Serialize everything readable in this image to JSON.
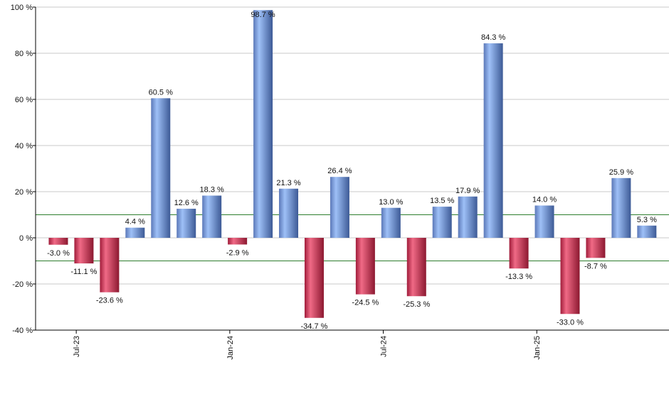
{
  "chart_data": {
    "type": "bar",
    "title": "",
    "xlabel": "",
    "ylabel": "",
    "ylim": [
      -40,
      100
    ],
    "yticks": [
      -40,
      -20,
      0,
      20,
      40,
      60,
      80,
      100
    ],
    "ytick_labels": [
      "-40 %",
      "-20 %",
      "0 %",
      "20 %",
      "40 %",
      "60 %",
      "80 %",
      "100 %"
    ],
    "grid": true,
    "reference_lines": [
      10,
      -10
    ],
    "colors": {
      "positive": "#7fa6e8",
      "negative": "#d9324f",
      "reference_line": "#2e7d2e",
      "gridline": "#c8c8c8"
    },
    "x_tick_labels": [
      {
        "label": "Jul-23",
        "index": 1.2
      },
      {
        "label": "Jan-24",
        "index": 7.2
      },
      {
        "label": "Jul-24",
        "index": 13.2
      },
      {
        "label": "Jan-25",
        "index": 19.2
      }
    ],
    "values": [
      -3.0,
      -11.1,
      -23.6,
      4.4,
      60.5,
      12.6,
      18.3,
      -2.9,
      98.7,
      21.3,
      -34.7,
      26.4,
      -24.5,
      13.0,
      -25.3,
      13.5,
      17.9,
      84.3,
      -13.3,
      14.0,
      -33.0,
      -8.7,
      25.9,
      5.3
    ],
    "labels": [
      "-3.0 %",
      "-11.1 %",
      "-23.6 %",
      "4.4 %",
      "60.5 %",
      "12.6 %",
      "18.3 %",
      "-2.9 %",
      "98.7 %",
      "21.3 %",
      "-34.7 %",
      "26.4 %",
      "-24.5 %",
      "13.0 %",
      "-25.3 %",
      "13.5 %",
      "17.9 %",
      "84.3 %",
      "-13.3 %",
      "14.0 %",
      "-33.0 %",
      "-8.7 %",
      "25.9 %",
      "5.3 %"
    ]
  }
}
